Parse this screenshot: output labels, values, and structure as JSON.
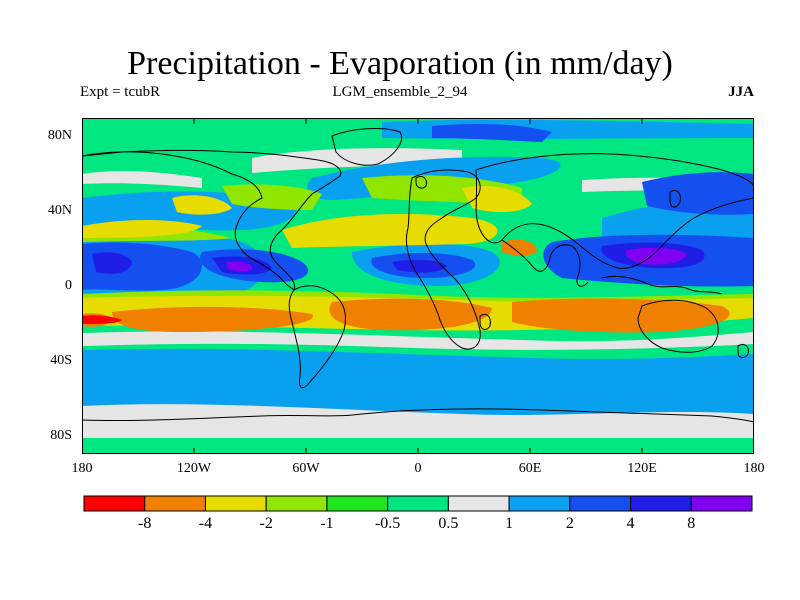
{
  "title": "Precipitation - Evaporation (in mm/day)",
  "subtitle_left": "Expt = tcubR",
  "subtitle_center": "LGM_ensemble_2_94",
  "subtitle_right": "JJA",
  "y_axis_ticks": [
    "80N",
    "40N",
    "0",
    "40S",
    "80S"
  ],
  "x_axis_ticks": [
    "180",
    "120W",
    "60W",
    "0",
    "60E",
    "120E",
    "180"
  ],
  "colorbar": {
    "labels": [
      "-8",
      "-4",
      "-2",
      "-1",
      "-0.5",
      "0.5",
      "1",
      "2",
      "4",
      "8"
    ],
    "colors": [
      "#ff0000",
      "#f08000",
      "#e6dc00",
      "#90e600",
      "#20e620",
      "#00e680",
      "#e6e6e6",
      "#0aa0f0",
      "#1450f0",
      "#1e1ee6",
      "#8200f0"
    ]
  },
  "map_colors": {
    "background": "#00e680",
    "coast": "#000000"
  }
}
